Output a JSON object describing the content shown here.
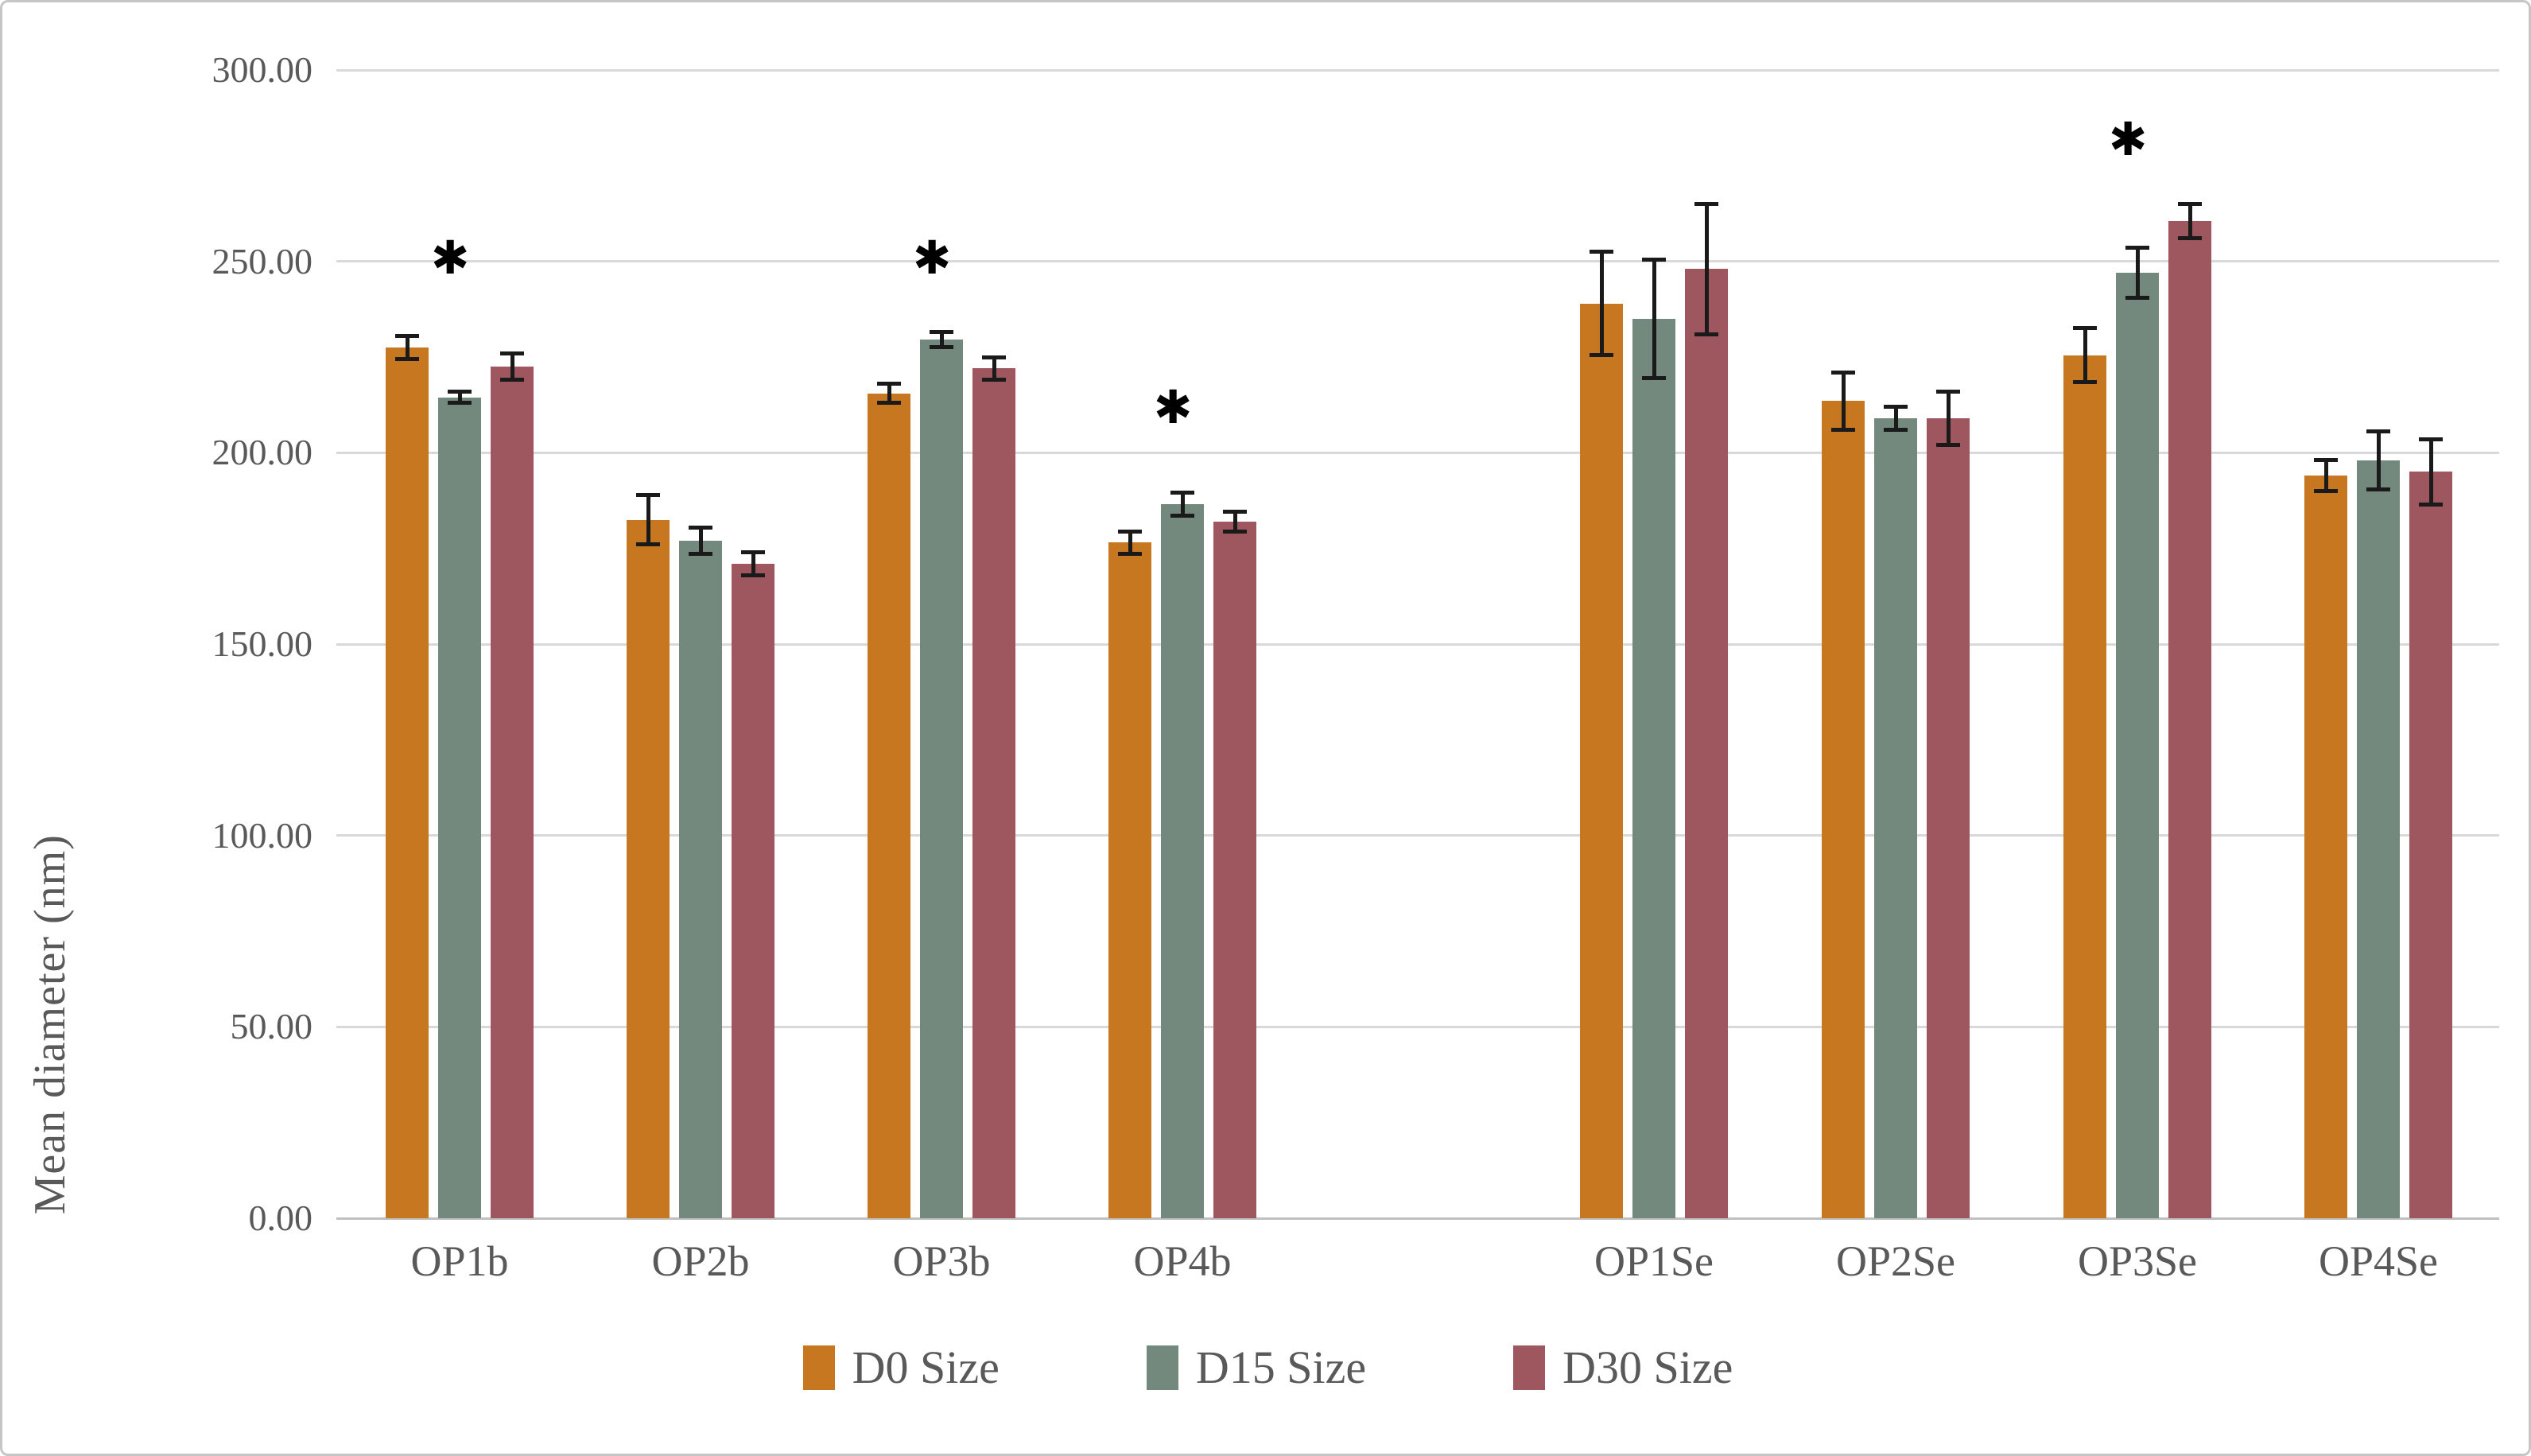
{
  "figure": {
    "y_axis": {
      "title": "Mean diameter (nm)",
      "tick_labels": [
        "300.00",
        "250.00",
        "200.00",
        "150.00",
        "100.00",
        "50.00",
        "0.00"
      ],
      "tick_values": [
        300,
        250,
        200,
        150,
        100,
        50,
        0
      ]
    },
    "colors": {
      "d0": "#C7771F",
      "d15": "#74897D",
      "d30": "#9E575E",
      "gridline": "#D9D9D9",
      "text": "#595959",
      "annotation": "#000000"
    }
  },
  "chart_data": {
    "type": "bar",
    "title": "",
    "xlabel": "",
    "ylabel": "Mean diameter (nm)",
    "ylim": [
      0,
      300
    ],
    "ytick_step": 50,
    "grid": true,
    "legend_position": "bottom",
    "categories": [
      "OP1b",
      "OP2b",
      "OP3b",
      "OP4b",
      "OP1Se",
      "OP2Se",
      "OP3Se",
      "OP4Se"
    ],
    "group_gap_after_index": 3,
    "series": [
      {
        "name": "D0 Size",
        "color": "#C7771F",
        "values": [
          227.5,
          182.5,
          215.5,
          176.5,
          239.0,
          213.5,
          225.5,
          194.0
        ],
        "errors": [
          3.0,
          6.5,
          2.5,
          3.0,
          13.5,
          7.5,
          7.0,
          4.0
        ]
      },
      {
        "name": "D15 Size",
        "color": "#74897D",
        "values": [
          214.5,
          177.0,
          229.5,
          186.5,
          235.0,
          209.0,
          247.0,
          198.0
        ],
        "errors": [
          1.5,
          3.5,
          2.0,
          3.0,
          15.5,
          3.0,
          6.5,
          7.5
        ]
      },
      {
        "name": "D30 Size",
        "color": "#9E575E",
        "values": [
          222.5,
          171.0,
          222.0,
          182.0,
          248.0,
          209.0,
          260.5,
          195.0
        ],
        "errors": [
          3.5,
          3.0,
          3.0,
          2.5,
          17.0,
          7.0,
          4.5,
          8.5
        ]
      }
    ],
    "annotations": [
      {
        "text": "*",
        "glyph": "✱",
        "category": "OP1b",
        "y": 251
      },
      {
        "text": "*",
        "glyph": "✱",
        "category": "OP3b",
        "y": 251
      },
      {
        "text": "*",
        "glyph": "✱",
        "category": "OP4b",
        "y": 212
      },
      {
        "text": "*",
        "glyph": "✱",
        "category": "OP3Se",
        "y": 282
      }
    ]
  }
}
